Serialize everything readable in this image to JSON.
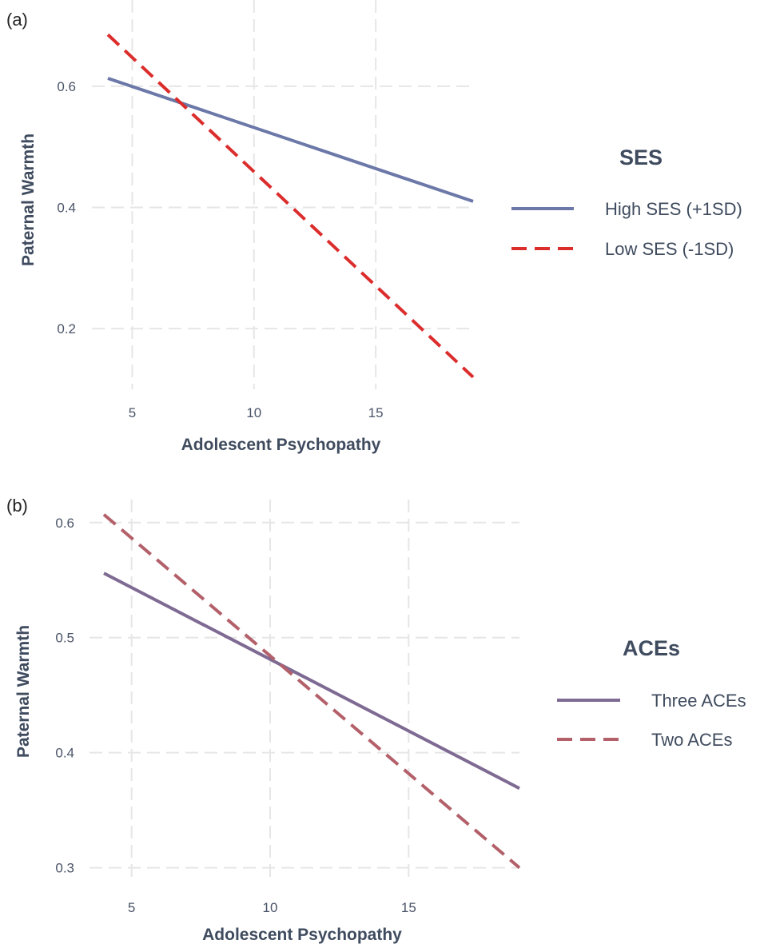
{
  "chart_data": [
    {
      "panel_label": "(a)",
      "type": "line",
      "xlabel": "Adolescent Psychopathy",
      "ylabel": "Paternal Warmth",
      "xlim": [
        4,
        19
      ],
      "ylim": [
        0.1,
        0.7
      ],
      "x_ticks": [
        5,
        10,
        15
      ],
      "y_ticks": [
        0.2,
        0.4,
        0.6
      ],
      "grid": true,
      "legend": {
        "title": "SES",
        "position": "right"
      },
      "series": [
        {
          "name": "High SES (+1SD)",
          "color": "#6b78a8",
          "style": "solid",
          "x": [
            4,
            19
          ],
          "y": [
            0.613,
            0.41
          ]
        },
        {
          "name": "Low SES (-1SD)",
          "color": "#dc2d2d",
          "style": "dashed",
          "x": [
            4,
            19
          ],
          "y": [
            0.685,
            0.12
          ]
        }
      ]
    },
    {
      "panel_label": "(b)",
      "type": "line",
      "xlabel": "Adolescent Psychopathy",
      "ylabel": "Paternal Warmth",
      "xlim": [
        4,
        19
      ],
      "ylim": [
        0.29,
        0.62
      ],
      "x_ticks": [
        5,
        10,
        15
      ],
      "y_ticks": [
        0.3,
        0.4,
        0.5,
        0.6
      ],
      "grid": true,
      "legend": {
        "title": "ACEs",
        "position": "right"
      },
      "series": [
        {
          "name": "Three ACEs",
          "color": "#7e6a92",
          "style": "solid",
          "x": [
            4,
            19
          ],
          "y": [
            0.556,
            0.369
          ]
        },
        {
          "name": "Two ACEs",
          "color": "#b3606a",
          "style": "dashed",
          "x": [
            4,
            19
          ],
          "y": [
            0.607,
            0.3
          ]
        }
      ]
    }
  ]
}
